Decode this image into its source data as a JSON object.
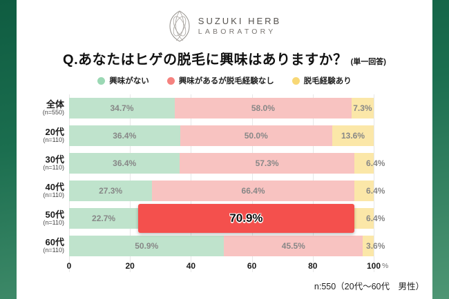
{
  "logo": {
    "name_line1": "SUZUKI HERB",
    "name_line2": "LABORATORY"
  },
  "title": {
    "question": "Q.あなたはヒゲの脱毛に興味はありますか？",
    "answer_type": "(単一回答)"
  },
  "legend": {
    "items": [
      {
        "label": "興味がない",
        "color": "#9BD8B4"
      },
      {
        "label": "興味があるが脱毛経験なし",
        "color": "#F5827F"
      },
      {
        "label": "脱毛経験あり",
        "color": "#F8D876"
      }
    ]
  },
  "chart_data": {
    "type": "bar",
    "orientation": "horizontal_stacked",
    "title": "Q.あなたはヒゲの脱毛に興味はありますか？（単一回答）",
    "categories": [
      "全体",
      "20代",
      "30代",
      "40代",
      "50代",
      "60代"
    ],
    "category_notes": [
      "(n=550)",
      "(n=110)",
      "(n=110)",
      "(n=110)",
      "(n=110)",
      "(n=110)"
    ],
    "series": [
      {
        "name": "興味がない",
        "color": "#BFE3CC",
        "values": [
          34.7,
          36.4,
          36.4,
          27.3,
          22.7,
          50.9
        ]
      },
      {
        "name": "興味があるが脱毛経験なし",
        "color": "#F8C3C1",
        "values": [
          58.0,
          50.0,
          57.3,
          66.4,
          70.9,
          45.5
        ]
      },
      {
        "name": "脱毛経験あり",
        "color": "#FBE7A8",
        "values": [
          7.3,
          13.6,
          6.4,
          6.4,
          6.4,
          3.6
        ]
      }
    ],
    "highlight": {
      "category_index": 4,
      "series_index": 1,
      "label": "70.9%",
      "color": "#F4504D"
    },
    "x_ticks": [
      "0",
      "20",
      "40",
      "60",
      "80",
      "100"
    ],
    "x_unit": "%",
    "xlim": [
      0,
      100
    ],
    "grid": true,
    "legend_position": "top"
  },
  "footnote": "n:550（20代〜60代　男性）",
  "colors": {
    "frame_top": "#0F5C41",
    "frame_bottom": "#4E9674",
    "value_label_gray": "#878787",
    "gridline": "#E7E7E7"
  }
}
